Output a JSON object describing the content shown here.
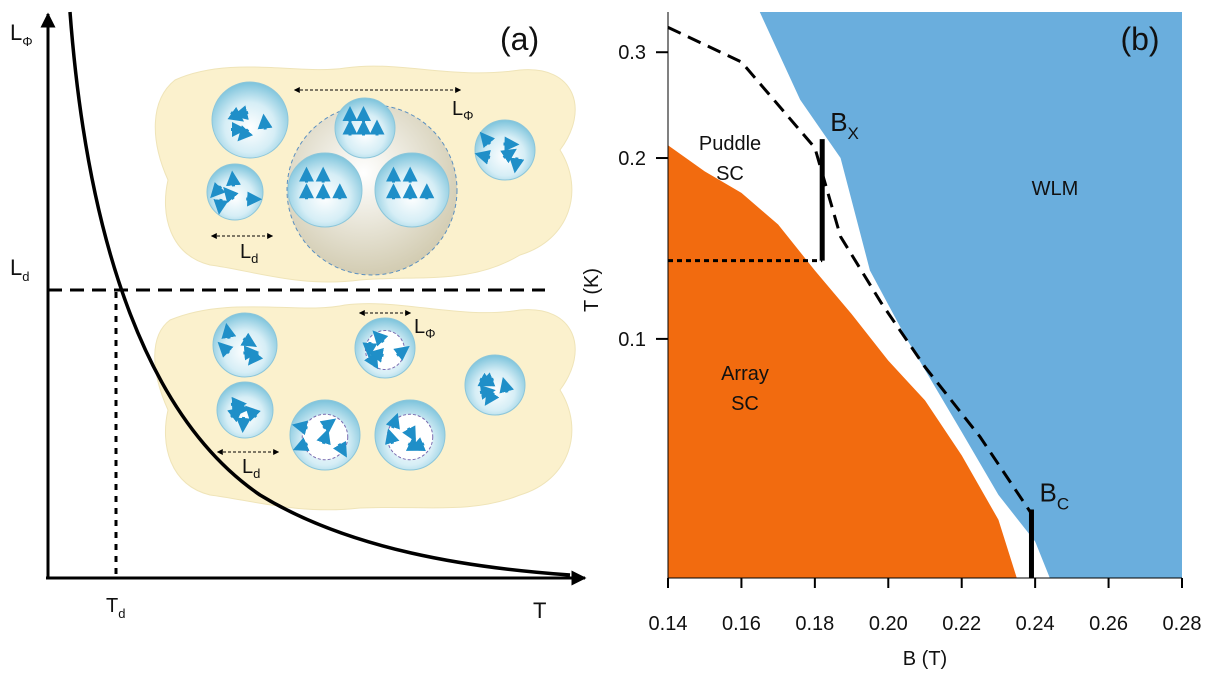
{
  "panel_a": {
    "label": "(a)",
    "x_axis": "T",
    "y_axis": {
      "main": "L",
      "sub": "Φ"
    },
    "y_mark": {
      "main": "L",
      "sub": "d"
    },
    "x_mark": {
      "main": "T",
      "sub": "d"
    },
    "top_cluster": {
      "coherence": {
        "main": "L",
        "sub": "Φ"
      },
      "puddle": {
        "main": "L",
        "sub": "d"
      }
    },
    "bottom_cluster": {
      "coherence": {
        "main": "L",
        "sub": "Φ"
      },
      "puddle": {
        "main": "L",
        "sub": "d"
      }
    }
  },
  "chart_data": {
    "type": "phase_diagram",
    "panel_label": "(b)",
    "x_label": "B (T)",
    "y_label": "T (K)",
    "xlim": [
      0.14,
      0.28
    ],
    "xticks": [
      0.14,
      0.16,
      0.18,
      {
        "value": 0.2,
        "label": "0.20"
      },
      0.22,
      0.24,
      0.26,
      0.28
    ],
    "ylim": [
      0.04,
      0.35
    ],
    "yticks": [
      0.1,
      0.2,
      0.3
    ],
    "y_scale": "log",
    "regions": [
      {
        "label": [
          "Array",
          "SC"
        ],
        "color": "#f26b0f",
        "x": [
          0.14,
          0.15,
          0.16,
          0.17,
          0.18,
          0.19,
          0.2,
          0.21,
          0.22,
          0.23,
          0.235
        ],
        "values": [
          0.21,
          0.19,
          0.175,
          0.155,
          0.13,
          0.11,
          0.092,
          0.079,
          0.064,
          0.05,
          0.04
        ]
      },
      {
        "label": [
          "WLM"
        ],
        "color": "#6aaedd",
        "x": [
          0.165,
          0.176,
          0.187,
          0.195,
          0.205,
          0.22,
          0.23,
          0.24,
          0.244
        ],
        "values": [
          0.35,
          0.25,
          0.2,
          0.13,
          0.1,
          0.07,
          0.055,
          0.046,
          0.04
        ]
      },
      {
        "label": [
          "Puddle",
          "SC"
        ],
        "color": "#ffffff"
      }
    ],
    "crossover": {
      "x": [
        0.14,
        0.16,
        0.18,
        0.187,
        0.198,
        0.21,
        0.225,
        0.2387
      ],
      "values": [
        0.33,
        0.289,
        0.208,
        0.148,
        0.115,
        0.0898,
        0.0687,
        0.0515
      ]
    },
    "bx": {
      "label": {
        "main": "B",
        "sub": "X"
      },
      "x": 0.182,
      "values": [
        0.135,
        0.215
      ]
    },
    "bc": {
      "label": {
        "main": "B",
        "sub": "C"
      },
      "x": 0.239,
      "values": [
        0.04,
        0.052
      ]
    },
    "bx_level": {
      "value": 0.135,
      "x": [
        0.14,
        0.182
      ]
    }
  }
}
